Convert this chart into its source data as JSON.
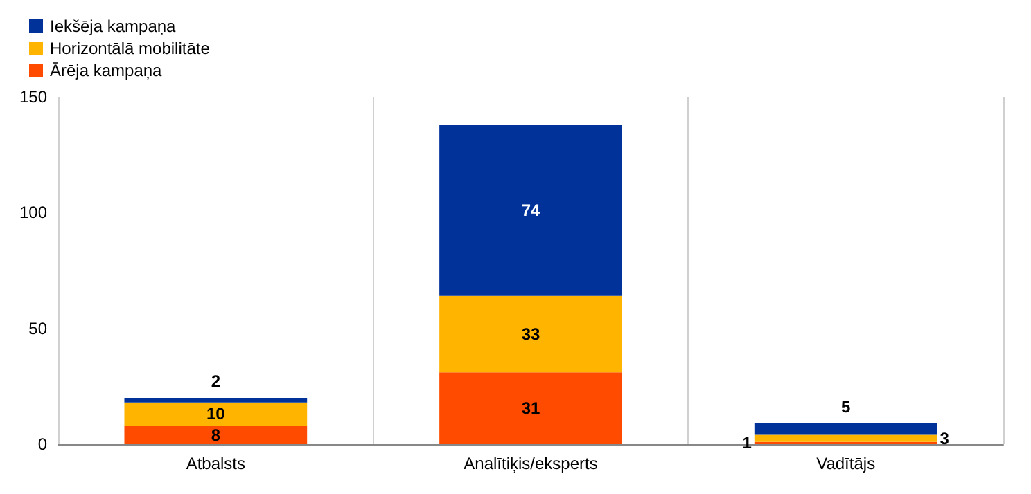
{
  "chart_data": {
    "type": "bar",
    "stacked": true,
    "categories": [
      "Atbalsts",
      "Analītiķis/eksperts",
      "Vadītājs"
    ],
    "series": [
      {
        "name": "Ārēja kampaņa",
        "color": "#ff4b00",
        "values": [
          8,
          31,
          1
        ]
      },
      {
        "name": "Horizontālā mobilitāte",
        "color": "#ffb400",
        "values": [
          10,
          33,
          3
        ]
      },
      {
        "name": "Iekšēja kampaņa",
        "color": "#003299",
        "values": [
          2,
          74,
          5
        ]
      }
    ],
    "ylim": [
      0,
      150
    ],
    "yticks": [
      0,
      50,
      100,
      150
    ],
    "grid": "x",
    "legend": "top left",
    "data_labels": true
  }
}
